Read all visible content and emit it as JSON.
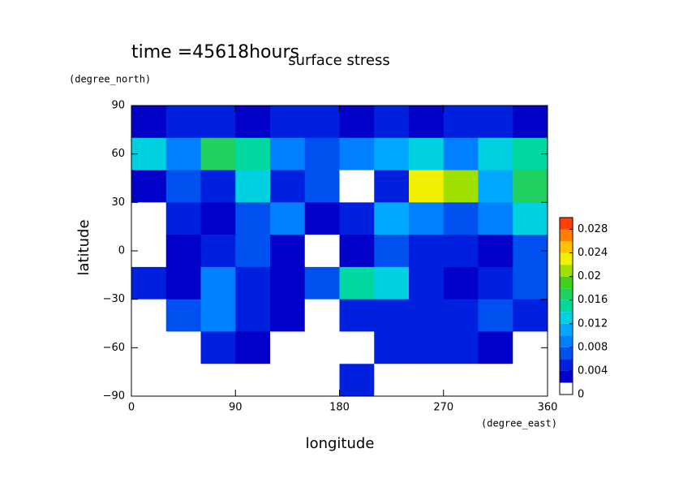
{
  "chart_data": {
    "type": "contour",
    "title": "surface stress",
    "annotation": "time =45618hours",
    "xlabel": "longitude",
    "ylabel": "latitude",
    "x_units": "(degree_east)",
    "y_units": "(degree_north)",
    "x": [
      15,
      45,
      75,
      105,
      135,
      165,
      195,
      225,
      255,
      285,
      315,
      345
    ],
    "y": [
      80,
      60,
      40,
      20,
      0,
      -20,
      -40,
      -60,
      -80
    ],
    "z": [
      [
        0.003,
        0.004,
        0.004,
        0.003,
        0.004,
        0.004,
        0.003,
        0.004,
        0.003,
        0.004,
        0.004,
        0.003
      ],
      [
        0.012,
        0.008,
        0.016,
        0.014,
        0.008,
        0.006,
        0.008,
        0.01,
        0.012,
        0.008,
        0.012,
        0.014
      ],
      [
        0.002,
        0.006,
        0.004,
        0.012,
        0.004,
        0.006,
        0,
        0.004,
        0.022,
        0.02,
        0.01,
        0.016
      ],
      [
        0,
        0.004,
        0.002,
        0.006,
        0.008,
        0.002,
        0.004,
        0.01,
        0.008,
        0.006,
        0.008,
        0.012
      ],
      [
        0,
        0.002,
        0.004,
        0.006,
        0.003,
        0,
        0.002,
        0.006,
        0.004,
        0.004,
        0.002,
        0.006
      ],
      [
        0.004,
        0.002,
        0.008,
        0.004,
        0.003,
        0.006,
        0.014,
        0.012,
        0.004,
        0.002,
        0.004,
        0.006
      ],
      [
        0,
        0.006,
        0.008,
        0.004,
        0.002,
        0,
        0.004,
        0.004,
        0.004,
        0.004,
        0.006,
        0.004
      ],
      [
        0,
        0,
        0.004,
        0.002,
        0,
        0,
        0,
        0.004,
        0.004,
        0.004,
        0.002,
        0
      ],
      [
        0,
        0,
        0,
        0,
        0,
        0,
        0.004,
        0,
        0,
        0,
        0,
        0
      ]
    ],
    "xlim": [
      0,
      360
    ],
    "ylim": [
      -90,
      90
    ],
    "xticks": [
      0,
      90,
      180,
      270,
      360
    ],
    "yticks": [
      {
        "value": -90,
        "label": "−90"
      },
      {
        "value": -60,
        "label": "−60"
      },
      {
        "value": -30,
        "label": "−30"
      },
      0,
      30,
      60,
      90
    ],
    "colorbar": {
      "lim": [
        0,
        0.03
      ],
      "levels": [
        0,
        0.002,
        0.004,
        0.006,
        0.008,
        0.01,
        0.012,
        0.014,
        0.016,
        0.018,
        0.02,
        0.022,
        0.024,
        0.026,
        0.028,
        0.03
      ],
      "colors": [
        "#ffffff",
        "#0000c8",
        "#0020e0",
        "#0050f0",
        "#0080ff",
        "#00a8ff",
        "#00d0e0",
        "#00d8a0",
        "#20d060",
        "#40d020",
        "#a0e000",
        "#f0f000",
        "#ffc000",
        "#ff8000",
        "#ff4000"
      ],
      "ticks": [
        0,
        0.004,
        0.008,
        0.012,
        0.016,
        0.02,
        0.024,
        0.028
      ]
    }
  }
}
